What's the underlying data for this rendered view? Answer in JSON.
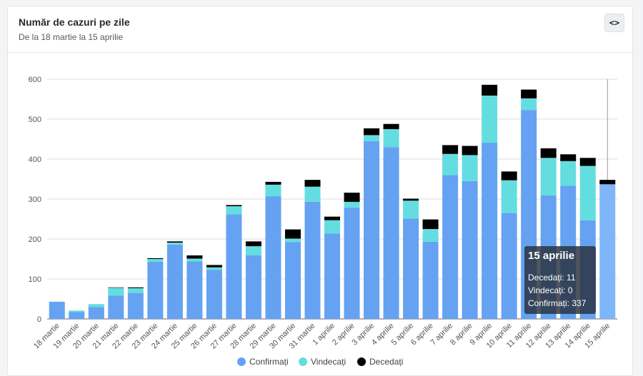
{
  "header": {
    "title": "Număr de cazuri pe zile",
    "subtitle": "De la 18 martie la 15 aprilie",
    "code_button_label": "<>"
  },
  "colors": {
    "confirmed": "#65a2f2",
    "confirmed_highlight": "#7fb6fa",
    "recovered": "#64dde0",
    "deceased": "#000000"
  },
  "tooltip": {
    "title": "15 aprilie",
    "lines": [
      "Decedați: 11",
      "Vindecați: 0",
      "Confirmați: 337"
    ]
  },
  "chart_data": {
    "type": "bar",
    "stacked": true,
    "categories": [
      "18 martie",
      "19 martie",
      "20 martie",
      "21 martie",
      "22 martie",
      "23 martie",
      "24 martie",
      "25 martie",
      "26 martie",
      "27 martie",
      "28 martie",
      "29 martie",
      "30 martie",
      "31 martie",
      "1 aprilie",
      "2 aprilie",
      "3 aprilie",
      "4 aprilie",
      "5 aprilie",
      "6 aprilie",
      "7 aprilie",
      "8 aprilie",
      "9 aprilie",
      "10 aprilie",
      "11 aprilie",
      "12 aprilie",
      "13 aprilie",
      "14 aprilie",
      "15 aprilie"
    ],
    "series": [
      {
        "name": "Confirmați",
        "values": [
          43,
          17,
          30,
          58,
          65,
          143,
          186,
          144,
          123,
          262,
          159,
          307,
          192,
          293,
          214,
          279,
          445,
          430,
          251,
          193,
          360,
          345,
          441,
          265,
          523,
          309,
          333,
          247,
          337
        ]
      },
      {
        "name": "Vindecați",
        "values": [
          0,
          4,
          7,
          20,
          12,
          7,
          5,
          7,
          6,
          20,
          23,
          29,
          9,
          38,
          33,
          14,
          15,
          45,
          45,
          32,
          53,
          65,
          118,
          82,
          29,
          94,
          62,
          136,
          0
        ]
      },
      {
        "name": "Decedați",
        "values": [
          0,
          0,
          0,
          1,
          2,
          2,
          3,
          8,
          6,
          3,
          12,
          7,
          23,
          17,
          9,
          23,
          17,
          13,
          5,
          24,
          22,
          23,
          27,
          22,
          22,
          24,
          17,
          20,
          11
        ]
      }
    ],
    "ylim": [
      0,
      600
    ],
    "yticks": [
      0,
      100,
      200,
      300,
      400,
      500,
      600
    ],
    "highlighted_category": "15 aprilie",
    "legend": [
      "Confirmați",
      "Vindecați",
      "Decedați"
    ],
    "legend_position": "bottom"
  }
}
